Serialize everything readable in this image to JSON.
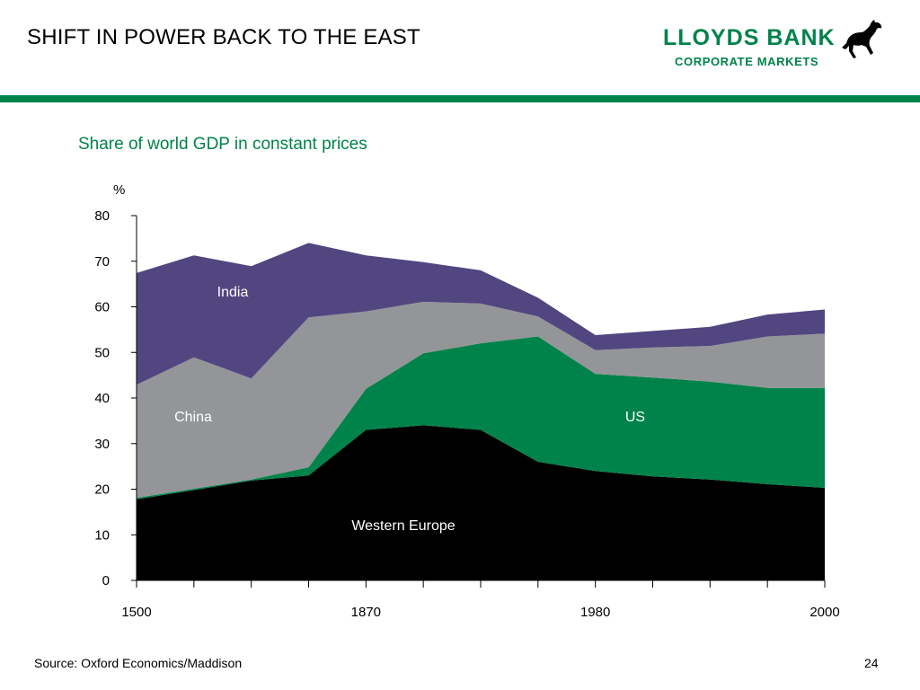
{
  "slide": {
    "title": "SHIFT IN POWER BACK TO THE EAST",
    "source": "Source: Oxford Economics/Maddison",
    "page_number": "24"
  },
  "logo": {
    "name": "LLOYDS BANK",
    "subtitle": "CORPORATE MARKETS",
    "icon": "black-horse-icon",
    "color": "#00834a"
  },
  "colors": {
    "brand_green": "#00834a",
    "western_europe": "#000000",
    "us": "#00834a",
    "china": "#939598",
    "india": "#524680"
  },
  "chart_data": {
    "type": "area",
    "stacked": true,
    "title": "Share of world GDP in constant prices",
    "ylabel": "%",
    "ylim": [
      0,
      80
    ],
    "yticks": [
      0,
      10,
      20,
      30,
      40,
      50,
      60,
      70,
      80
    ],
    "x_tick_labels": [
      "1500",
      "1870",
      "1980",
      "2000"
    ],
    "x_tick_label_index": [
      0,
      4,
      8,
      12
    ],
    "point_count": 13,
    "grid": false,
    "legend": "labels inside areas",
    "series": [
      {
        "name": "Western Europe",
        "values": [
          17.8,
          19.8,
          21.9,
          23.0,
          33.0,
          34.0,
          33.0,
          26.0,
          24.0,
          22.8,
          22.1,
          21.1,
          20.3
        ]
      },
      {
        "name": "US",
        "values": [
          0.3,
          0.3,
          0.2,
          1.8,
          9.0,
          15.8,
          19.0,
          27.5,
          21.3,
          21.7,
          21.5,
          21.1,
          21.9
        ]
      },
      {
        "name": "China",
        "values": [
          24.8,
          28.8,
          22.2,
          32.9,
          17.0,
          11.3,
          8.7,
          4.4,
          5.2,
          6.6,
          7.8,
          11.3,
          11.9
        ]
      },
      {
        "name": "India",
        "values": [
          24.5,
          22.4,
          24.6,
          16.3,
          12.3,
          8.7,
          7.3,
          4.1,
          3.3,
          3.6,
          4.2,
          4.8,
          5.3
        ]
      }
    ],
    "area_labels": [
      "Western Europe",
      "US",
      "China",
      "India"
    ]
  }
}
